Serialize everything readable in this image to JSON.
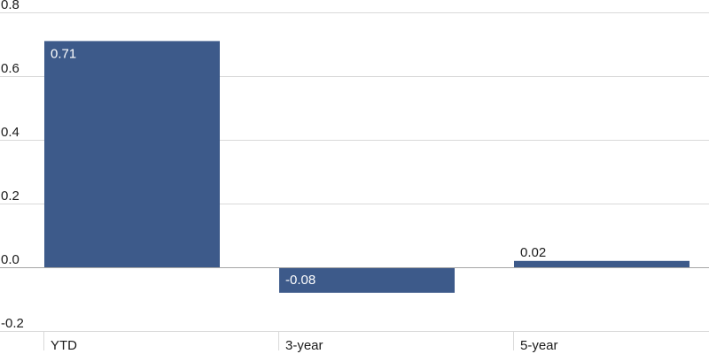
{
  "chart_data": {
    "type": "bar",
    "categories": [
      "YTD",
      "3-year",
      "5-year"
    ],
    "values": [
      0.71,
      -0.08,
      0.02
    ],
    "data_labels": [
      "0.71",
      "-0.08",
      "0.02"
    ],
    "yticks": [
      0.8,
      0.6,
      0.4,
      0.2,
      0.0,
      -0.2
    ],
    "ytick_labels": [
      "0.8",
      "0.6",
      "0.4",
      "0.2",
      "0.0",
      "-0.2"
    ],
    "ylim": [
      -0.2,
      0.8
    ],
    "title": "",
    "xlabel": "",
    "ylabel": "",
    "grid": true,
    "colors": {
      "bar": "#3d5a8a",
      "grid": "#d9d9d9",
      "zero_line": "#a6a6a6",
      "label_inside": "#ffffff",
      "label_outside": "#1a1a1a"
    }
  }
}
